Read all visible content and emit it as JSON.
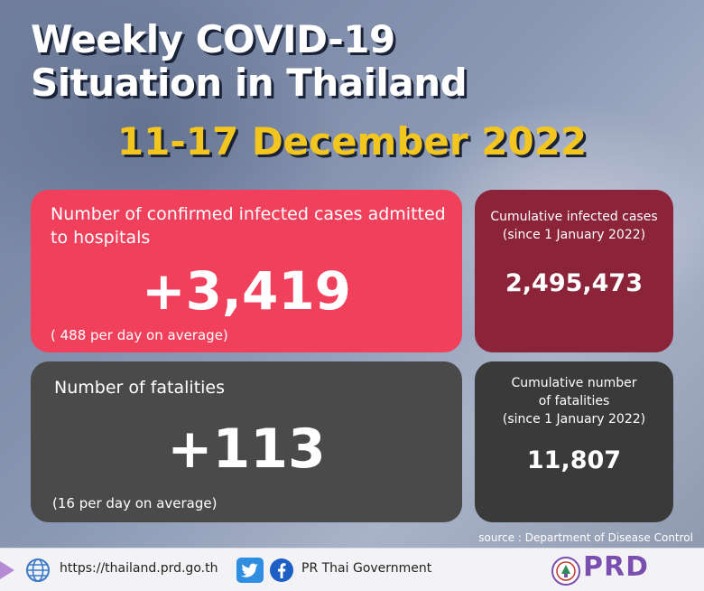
{
  "title": {
    "line1": "Weekly COVID-19",
    "line2": "Situation in Thailand"
  },
  "date_range": "11-17 December 2022",
  "hospital": {
    "label": "Number of confirmed infected cases admitted to hospitals",
    "value": "+3,419",
    "average": "( 488 per day on average)"
  },
  "cumulative_infected": {
    "label_line1": "Cumulative infected cases",
    "label_line2": "(since 1 January 2022)",
    "value": "2,495,473"
  },
  "fatalities": {
    "label": "Number of fatalities",
    "value": "+113",
    "average": "(16 per day on average)"
  },
  "cumulative_fatalities": {
    "label_line1": "Cumulative number",
    "label_line2": "of fatalities",
    "label_line3": "(since 1 January 2022)",
    "value": "11,807"
  },
  "source": "source : Department of Disease Control",
  "footer": {
    "website": "https://thailand.prd.go.th",
    "social_account": "PR Thai Government",
    "logo_text": "PRD",
    "icons": [
      "globe-icon",
      "twitter-icon",
      "facebook-icon"
    ]
  },
  "colors": {
    "hospital_card": "#f1405c",
    "cumulative_infected_card": "#8b2438",
    "fatalities_card": "#4a4a4a",
    "cumulative_fatalities_card": "#3a3a3a",
    "date_accent": "#f3c51f",
    "prd_brand": "#7a4fb0"
  }
}
